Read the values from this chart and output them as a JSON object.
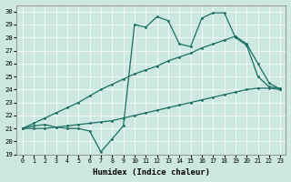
{
  "xlabel": "Humidex (Indice chaleur)",
  "xlim": [
    -0.5,
    23.5
  ],
  "ylim": [
    19,
    30.5
  ],
  "yticks": [
    19,
    20,
    21,
    22,
    23,
    24,
    25,
    26,
    27,
    28,
    29,
    30
  ],
  "xticks": [
    0,
    1,
    2,
    3,
    4,
    5,
    6,
    7,
    8,
    9,
    10,
    11,
    12,
    13,
    14,
    15,
    16,
    17,
    18,
    19,
    20,
    21,
    22,
    23
  ],
  "bg_color": "#cce8e0",
  "line_color": "#1a6e62",
  "line1_x": [
    0,
    1,
    2,
    3,
    4,
    5,
    6,
    7,
    8,
    9,
    10,
    11,
    12,
    13,
    14,
    15,
    16,
    17,
    18,
    19,
    20,
    21,
    22,
    23
  ],
  "line1_y": [
    21.0,
    21.2,
    21.3,
    21.1,
    21.0,
    21.0,
    20.8,
    19.2,
    20.2,
    21.2,
    29.0,
    28.8,
    29.6,
    29.3,
    27.5,
    27.3,
    29.5,
    29.9,
    29.9,
    28.0,
    27.4,
    25.0,
    24.2,
    24.1
  ],
  "line2_x": [
    0,
    1,
    2,
    3,
    4,
    5,
    6,
    7,
    8,
    9,
    10,
    11,
    12,
    13,
    14,
    15,
    16,
    17,
    18,
    19,
    20,
    21,
    22,
    23
  ],
  "line2_y": [
    21.0,
    21.4,
    21.8,
    22.2,
    22.6,
    23.0,
    23.5,
    24.0,
    24.4,
    24.8,
    25.2,
    25.5,
    25.8,
    26.2,
    26.5,
    26.8,
    27.2,
    27.5,
    27.8,
    28.1,
    27.5,
    26.0,
    24.5,
    24.0
  ],
  "line3_x": [
    0,
    1,
    2,
    3,
    4,
    5,
    6,
    7,
    8,
    9,
    10,
    11,
    12,
    13,
    14,
    15,
    16,
    17,
    18,
    19,
    20,
    21,
    22,
    23
  ],
  "line3_y": [
    21.0,
    21.0,
    21.0,
    21.1,
    21.2,
    21.3,
    21.4,
    21.5,
    21.6,
    21.8,
    22.0,
    22.2,
    22.4,
    22.6,
    22.8,
    23.0,
    23.2,
    23.4,
    23.6,
    23.8,
    24.0,
    24.1,
    24.1,
    24.0
  ]
}
